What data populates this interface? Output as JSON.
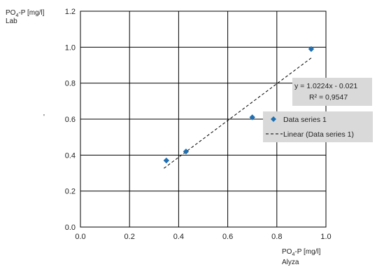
{
  "chart_data": {
    "type": "scatter",
    "y_axis_title": {
      "line1_prefix": "PO",
      "line1_sub": "4",
      "line1_suffix": "-P [mg/l]",
      "line2": "Lab"
    },
    "x_axis_title": {
      "line1_prefix": "PO",
      "line1_sub": "4",
      "line1_suffix": "-P [mg/l]",
      "line2": "Alyza"
    },
    "stray_mark": "'",
    "xlim": [
      0.0,
      1.0
    ],
    "ylim": [
      0.0,
      1.2
    ],
    "x_ticks": [
      "0.0",
      "0.2",
      "0.4",
      "0.6",
      "0.8",
      "1.0"
    ],
    "y_ticks": [
      "0.0",
      "0.2",
      "0.4",
      "0.6",
      "0.8",
      "1.0",
      "1.2"
    ],
    "grid": true,
    "series": [
      {
        "name": "Data series 1",
        "marker": "diamond",
        "color": "#1f6fb2",
        "points": [
          {
            "x": 0.35,
            "y": 0.37
          },
          {
            "x": 0.43,
            "y": 0.42
          },
          {
            "x": 0.7,
            "y": 0.61
          },
          {
            "x": 0.94,
            "y": 0.99
          }
        ]
      }
    ],
    "trendline": {
      "name": "Linear (Data series 1)",
      "slope": 1.0224,
      "intercept": -0.021,
      "x_range": [
        0.34,
        0.94
      ],
      "style": "dashed",
      "equation_text": "y = 1.0224x - 0.021",
      "r2_text": "R² = 0,9547"
    },
    "legend": {
      "placement": "right",
      "entries": [
        "Data series 1",
        "Linear (Data series 1)"
      ]
    }
  }
}
